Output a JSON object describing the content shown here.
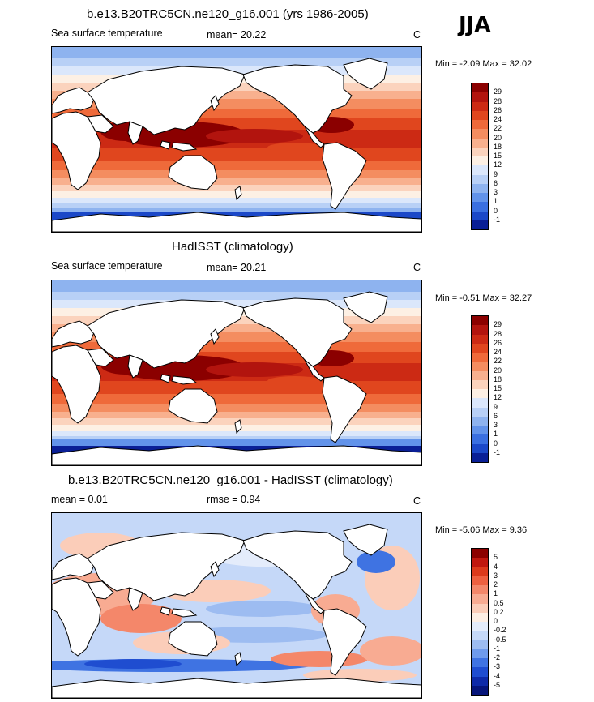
{
  "season_label": "JJA",
  "panels": [
    {
      "id": "model",
      "title": "b.e13.B20TRC5CN.ne120_g16.001 (yrs 1986-2005)",
      "left_label": "Sea surface temperature",
      "mid_label": "mean=  20.22",
      "right_label": "C",
      "minmax": "Min =  -2.09 Max =  32.02",
      "colorbar": {
        "labels": [
          "29",
          "28",
          "26",
          "24",
          "22",
          "20",
          "18",
          "15",
          "12",
          "9",
          "6",
          "3",
          "1",
          "0",
          "-1"
        ],
        "colors": [
          "#8b0000",
          "#b2140e",
          "#cc2a14",
          "#e0461e",
          "#ef6a3a",
          "#f48d60",
          "#f8b08e",
          "#fbd3bd",
          "#fdf0e4",
          "#dbe7fb",
          "#b8d0f6",
          "#8eb3ef",
          "#6293ea",
          "#3a6fe0",
          "#1b48c8",
          "#0a1f96"
        ]
      }
    },
    {
      "id": "obs",
      "title": "HadISST (climatology)",
      "left_label": "Sea surface temperature",
      "mid_label": "mean=  20.21",
      "right_label": "C",
      "minmax": "Min =  -0.51 Max =  32.27",
      "colorbar": {
        "labels": [
          "29",
          "28",
          "26",
          "24",
          "22",
          "20",
          "18",
          "15",
          "12",
          "9",
          "6",
          "3",
          "1",
          "0",
          "-1"
        ],
        "colors": [
          "#8b0000",
          "#b2140e",
          "#cc2a14",
          "#e0461e",
          "#ef6a3a",
          "#f48d60",
          "#f8b08e",
          "#fbd3bd",
          "#fdf0e4",
          "#dbe7fb",
          "#b8d0f6",
          "#8eb3ef",
          "#6293ea",
          "#3a6fe0",
          "#1b48c8",
          "#0a1f96"
        ]
      }
    },
    {
      "id": "diff",
      "title": "b.e13.B20TRC5CN.ne120_g16.001 - HadISST (climatology)",
      "left_label": "mean =   0.01",
      "mid_label": "rmse =   0.94",
      "right_label": "C",
      "minmax": "Min =  -5.06 Max =   9.36",
      "colorbar": {
        "labels": [
          "5",
          "4",
          "3",
          "2",
          "1",
          "0.5",
          "0.2",
          "0",
          "-0.2",
          "-0.5",
          "-1",
          "-2",
          "-3",
          "-4",
          "-5"
        ],
        "colors": [
          "#8b0000",
          "#c0170f",
          "#dc3a1c",
          "#ee6040",
          "#f4876a",
          "#f8ab92",
          "#fbcdb9",
          "#fdeee4",
          "#e4ecfb",
          "#c5d8f8",
          "#9dbcf1",
          "#6f9bec",
          "#3f73e2",
          "#1f4dd0",
          "#0e2aa8",
          "#06157a"
        ]
      }
    }
  ]
}
